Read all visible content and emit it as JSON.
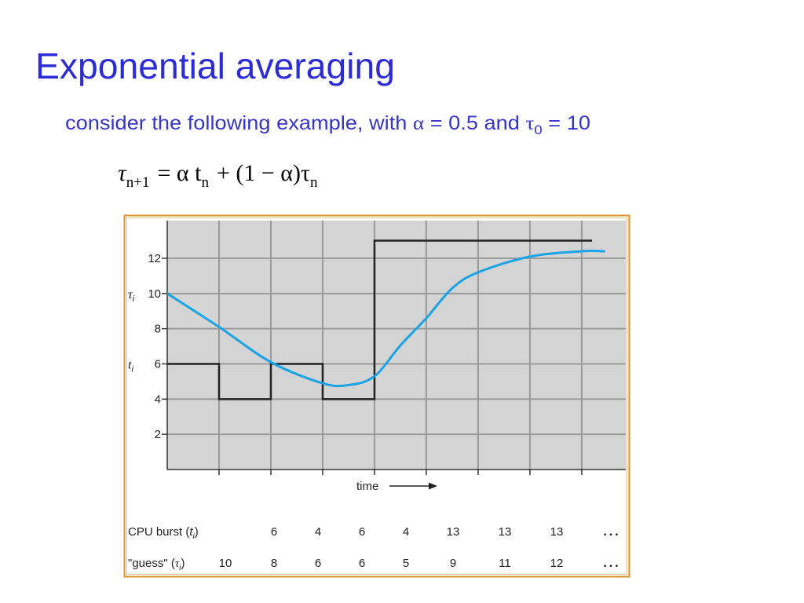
{
  "title": "Exponential averaging",
  "subtitle": [
    "consider the following example, with ",
    "α",
    " = 0.5 and ",
    "τ",
    "0",
    " = 10"
  ],
  "formula": [
    "τ",
    "n+1",
    "= α t",
    "n",
    "+ (1 − α)τ",
    "n"
  ],
  "chart_data": {
    "type": "line",
    "x_label": "time",
    "y_labels": [
      {
        "symbol": "τ",
        "sub": "i",
        "at": 10
      },
      {
        "symbol": "t",
        "sub": "i",
        "at": 6
      }
    ],
    "xlim": [
      0,
      8.85
    ],
    "ylim": [
      0,
      14.14
    ],
    "yticks": [
      2,
      4,
      6,
      8,
      10,
      12
    ],
    "xticks": [
      1,
      2,
      3,
      4,
      5,
      6,
      7,
      8
    ],
    "show_xtick_labels": false,
    "grid": true,
    "series": [
      {
        "name": "t",
        "style": "step",
        "color": "#222222",
        "x": [
          0,
          1,
          2,
          3,
          4,
          8.2
        ],
        "values": [
          6,
          4,
          6,
          4,
          13,
          13
        ]
      },
      {
        "name": "τ",
        "style": "smooth",
        "color": "#1aa3e6",
        "x": [
          0,
          1,
          2,
          3,
          3.5,
          4,
          4.5,
          5,
          5.5,
          6,
          7,
          8,
          8.45
        ],
        "values": [
          10,
          8.1,
          6.1,
          4.9,
          4.8,
          5.3,
          7.05,
          8.6,
          10.3,
          11.2,
          12.1,
          12.4,
          12.4
        ]
      }
    ]
  },
  "table": {
    "rows": [
      {
        "label": [
          "CPU burst (",
          "t",
          "i",
          ")"
        ],
        "cells": [
          6,
          4,
          6,
          4,
          13,
          13,
          13
        ],
        "more": "…"
      },
      {
        "label": [
          "\"guess\" (",
          "τ",
          "i",
          ")"
        ],
        "cells": [
          10,
          8,
          6,
          6,
          5,
          9,
          11,
          12
        ],
        "more": "…"
      }
    ]
  }
}
